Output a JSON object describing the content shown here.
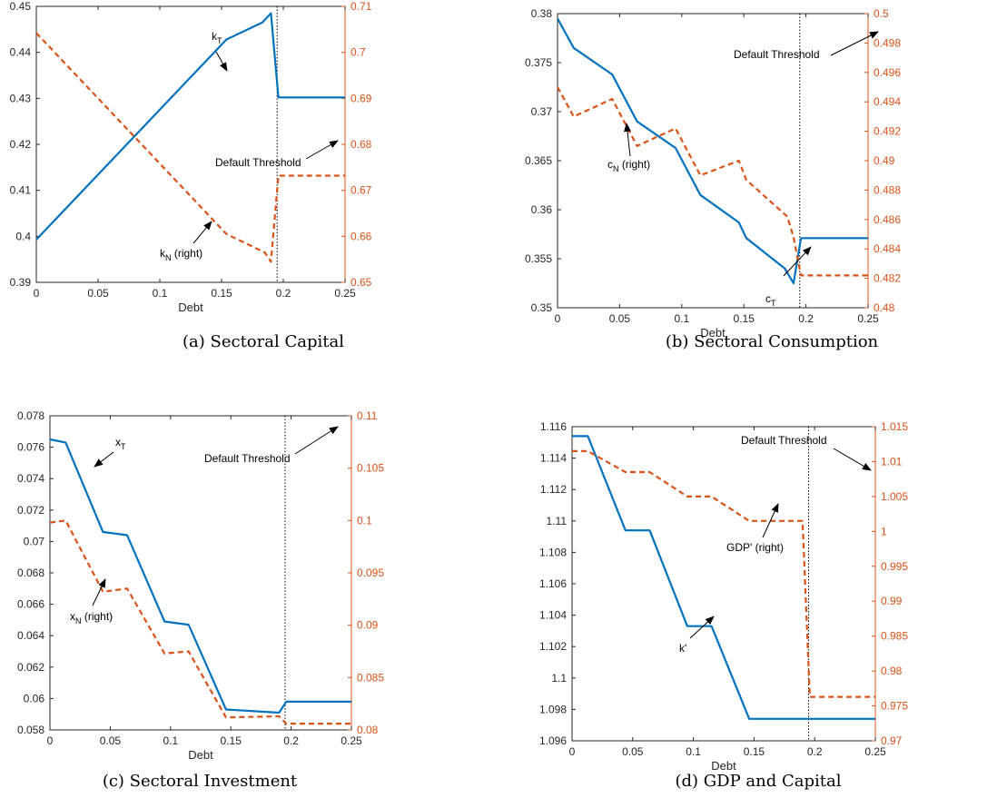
{
  "colors": {
    "left_series": "#0072bd",
    "right_series": "#d95319",
    "threshold": "#000000",
    "axis": "#262626"
  },
  "chart_data": [
    {
      "type": "line",
      "caption": "(a) Sectoral Capital",
      "xlabel": "Debt",
      "xlim": [
        0,
        0.25
      ],
      "xticks": [
        "0",
        "0.05",
        "0.1",
        "0.15",
        "0.2",
        "0.25"
      ],
      "ylim_left": [
        0.39,
        0.45
      ],
      "yticks_left": [
        "0.39",
        "0.4",
        "0.41",
        "0.42",
        "0.43",
        "0.44",
        "0.45"
      ],
      "ylim_right": [
        0.65,
        0.71
      ],
      "yticks_right": [
        "0.65",
        "0.66",
        "0.67",
        "0.68",
        "0.69",
        "0.7",
        "0.71"
      ],
      "threshold_x": 0.195,
      "series": [
        {
          "axis": "left",
          "style": "solid",
          "x": [
            0,
            0.154,
            0.183,
            0.19,
            0.196,
            0.25
          ],
          "y": [
            0.3993,
            0.4428,
            0.4465,
            0.4485,
            0.4302,
            0.4302
          ]
        },
        {
          "axis": "right",
          "style": "dashed",
          "x": [
            0,
            0.154,
            0.185,
            0.19,
            0.196,
            0.25
          ],
          "y": [
            0.7042,
            0.6605,
            0.6565,
            0.6545,
            0.6732,
            0.6732
          ]
        }
      ],
      "annotations": [
        {
          "main": "k",
          "sub": "T",
          "suffix": ""
        },
        {
          "main": "k",
          "sub": "N",
          "suffix": " (right)"
        },
        {
          "main": "Default Threshold",
          "sub": "",
          "suffix": ""
        }
      ]
    },
    {
      "type": "line",
      "caption": "(b) Sectoral Consumption",
      "xlabel": "Debt",
      "xlim": [
        0,
        0.25
      ],
      "xticks": [
        "0",
        "0.05",
        "0.1",
        "0.15",
        "0.2",
        "0.25"
      ],
      "ylim_left": [
        0.35,
        0.38
      ],
      "yticks_left": [
        "0.35",
        "0.355",
        "0.36",
        "0.365",
        "0.37",
        "0.375",
        "0.38"
      ],
      "ylim_right": [
        0.48,
        0.5
      ],
      "yticks_right": [
        "0.48",
        "0.482",
        "0.484",
        "0.486",
        "0.488",
        "0.49",
        "0.492",
        "0.494",
        "0.496",
        "0.498",
        "0.5"
      ],
      "threshold_x": 0.195,
      "series": [
        {
          "axis": "left",
          "style": "solid",
          "x": [
            0,
            0.013,
            0.044,
            0.064,
            0.095,
            0.115,
            0.146,
            0.152,
            0.183,
            0.19,
            0.196,
            0.25
          ],
          "y": [
            0.3795,
            0.3765,
            0.3738,
            0.369,
            0.3663,
            0.3615,
            0.3587,
            0.3571,
            0.354,
            0.3525,
            0.3571,
            0.3571
          ]
        },
        {
          "axis": "right",
          "style": "dashed",
          "x": [
            0,
            0.013,
            0.044,
            0.064,
            0.095,
            0.115,
            0.146,
            0.152,
            0.185,
            0.19,
            0.196,
            0.25
          ],
          "y": [
            0.495,
            0.493,
            0.4942,
            0.491,
            0.4922,
            0.489,
            0.49,
            0.4887,
            0.4862,
            0.4848,
            0.4822,
            0.4822
          ]
        }
      ],
      "annotations": [
        {
          "main": "Default Threshold",
          "sub": "",
          "suffix": ""
        },
        {
          "main": "c",
          "sub": "N",
          "suffix": " (right)"
        },
        {
          "main": "c",
          "sub": "T",
          "suffix": ""
        }
      ]
    },
    {
      "type": "line",
      "caption": "(c) Sectoral Investment",
      "xlabel": "Debt",
      "xlim": [
        0,
        0.25
      ],
      "xticks": [
        "0",
        "0.05",
        "0.1",
        "0.15",
        "0.2",
        "0.25"
      ],
      "ylim_left": [
        0.058,
        0.078
      ],
      "yticks_left": [
        "0.058",
        "0.06",
        "0.062",
        "0.064",
        "0.066",
        "0.068",
        "0.07",
        "0.072",
        "0.074",
        "0.076",
        "0.078"
      ],
      "ylim_right": [
        0.08,
        0.11
      ],
      "yticks_right": [
        "0.08",
        "0.085",
        "0.09",
        "0.095",
        "0.1",
        "0.105",
        "0.11"
      ],
      "threshold_x": 0.195,
      "series": [
        {
          "axis": "left",
          "style": "solid",
          "x": [
            0,
            0.013,
            0.044,
            0.064,
            0.095,
            0.115,
            0.146,
            0.19,
            0.196,
            0.25
          ],
          "y": [
            0.0765,
            0.0763,
            0.0706,
            0.0704,
            0.0649,
            0.0647,
            0.0593,
            0.0591,
            0.0598,
            0.0598
          ]
        },
        {
          "axis": "right",
          "style": "dashed",
          "x": [
            0,
            0.013,
            0.044,
            0.064,
            0.095,
            0.115,
            0.146,
            0.19,
            0.196,
            0.25
          ],
          "y": [
            0.0998,
            0.1,
            0.0932,
            0.0935,
            0.0873,
            0.0875,
            0.0812,
            0.0813,
            0.0806,
            0.0806
          ]
        }
      ],
      "annotations": [
        {
          "main": "x",
          "sub": "T",
          "suffix": ""
        },
        {
          "main": "Default Threshold",
          "sub": "",
          "suffix": ""
        },
        {
          "main": "x",
          "sub": "N",
          "suffix": " (right)"
        }
      ]
    },
    {
      "type": "line",
      "caption": "(d) GDP and Capital",
      "xlabel": "Debt",
      "xlim": [
        0,
        0.25
      ],
      "xticks": [
        "0",
        "0.05",
        "0.1",
        "0.15",
        "0.2",
        "0.25"
      ],
      "ylim_left": [
        1.096,
        1.116
      ],
      "yticks_left": [
        "1.096",
        "1.098",
        "1.1",
        "1.102",
        "1.104",
        "1.106",
        "1.108",
        "1.11",
        "1.112",
        "1.114",
        "1.116"
      ],
      "ylim_right": [
        0.97,
        1.015
      ],
      "yticks_right": [
        "0.97",
        "0.975",
        "0.98",
        "0.985",
        "0.99",
        "0.995",
        "1",
        "1.005",
        "1.01",
        "1.015"
      ],
      "threshold_x": 0.195,
      "series": [
        {
          "axis": "left",
          "style": "solid",
          "x": [
            0,
            0.013,
            0.044,
            0.064,
            0.095,
            0.115,
            0.146,
            0.25
          ],
          "y": [
            1.1154,
            1.1154,
            1.1094,
            1.1094,
            1.1033,
            1.1033,
            1.0974,
            1.0974
          ]
        },
        {
          "axis": "right",
          "style": "dashed",
          "x": [
            0,
            0.013,
            0.044,
            0.064,
            0.095,
            0.115,
            0.146,
            0.19,
            0.196,
            0.25
          ],
          "y": [
            1.0115,
            1.0115,
            1.0085,
            1.0085,
            1.005,
            1.005,
            1.0015,
            1.0015,
            0.9763,
            0.9763
          ]
        }
      ],
      "annotations": [
        {
          "main": "Default Threshold",
          "sub": "",
          "suffix": ""
        },
        {
          "main": "GDP' (right)",
          "sub": "",
          "suffix": ""
        },
        {
          "main": "k'",
          "sub": "",
          "suffix": ""
        }
      ]
    }
  ]
}
